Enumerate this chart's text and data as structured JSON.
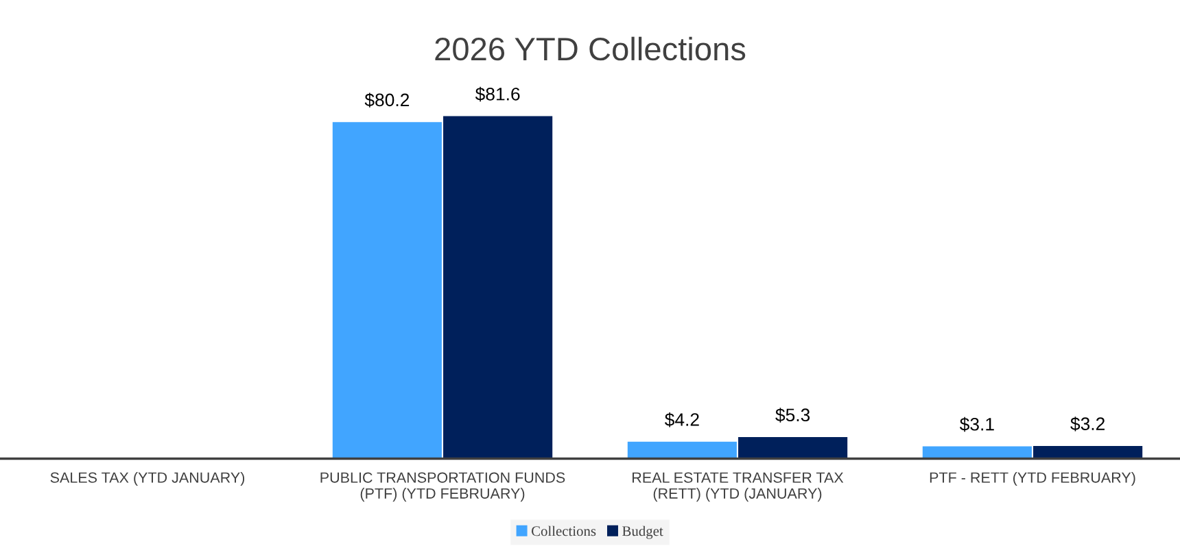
{
  "chart_data": {
    "type": "bar",
    "title": "2026 YTD Collections",
    "categories": [
      "SALES TAX (YTD JANUARY)",
      "PUBLIC TRANSPORTATION FUNDS\n(PTF) (YTD FEBRUARY)",
      "REAL ESTATE TRANSFER TAX\n(RETT) (YTD (JANUARY)",
      "PTF - RETT (YTD FEBRUARY)"
    ],
    "series": [
      {
        "name": "Collections",
        "color": "#41a5ff",
        "values": [
          null,
          80.2,
          4.2,
          3.1
        ],
        "value_labels": [
          null,
          "$80.2",
          "$4.2",
          "$3.1"
        ]
      },
      {
        "name": "Budget",
        "color": "#00205b",
        "values": [
          null,
          81.6,
          5.3,
          3.2
        ],
        "value_labels": [
          null,
          "$81.6",
          "$5.3",
          "$3.2"
        ]
      }
    ],
    "legend": "bottom",
    "grid": false
  }
}
